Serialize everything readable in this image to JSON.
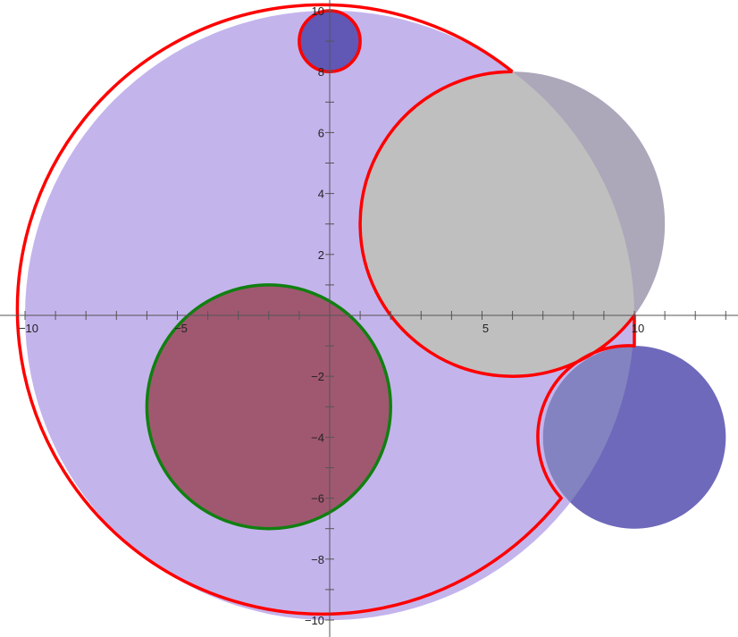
{
  "chart_data": {
    "type": "diagram",
    "xlim": [
      -10.5,
      13.5
    ],
    "ylim": [
      -10.5,
      10.5
    ],
    "grid": false,
    "x_ticks": [
      {
        "value": -10,
        "label": "−10"
      },
      {
        "value": -5,
        "label": "−5"
      },
      {
        "value": 5,
        "label": "5"
      },
      {
        "value": 10,
        "label": "10"
      }
    ],
    "y_ticks": [
      {
        "value": 10,
        "label": "10"
      },
      {
        "value": 8,
        "label": "8"
      },
      {
        "value": 6,
        "label": "6"
      },
      {
        "value": 4,
        "label": "4"
      },
      {
        "value": 2,
        "label": "2"
      },
      {
        "value": -2,
        "label": "−2"
      },
      {
        "value": -4,
        "label": "−4"
      },
      {
        "value": -6,
        "label": "−6"
      },
      {
        "value": -8,
        "label": "−8"
      },
      {
        "value": -10,
        "label": "−10"
      }
    ],
    "minor_tick_step": 1,
    "main_disk": {
      "center": [
        0,
        0
      ],
      "radius": 10
    },
    "cutouts": [
      {
        "center": [
          6,
          3
        ],
        "radius": 5
      },
      {
        "center": [
          10,
          -4
        ],
        "radius": 3
      }
    ],
    "circles": [
      {
        "center": [
          6,
          3
        ],
        "radius": 5,
        "fill": "#a0a0a0",
        "opacity": 0.68
      },
      {
        "center": [
          10,
          -4
        ],
        "radius": 3,
        "fill": "#4040a0",
        "opacity": 0.65
      },
      {
        "center": [
          0,
          9
        ],
        "radius": 1,
        "fill": "#6058b4",
        "stroke": "#ff0000"
      },
      {
        "center": [
          -2,
          -3
        ],
        "radius": 4,
        "fill": "#a05870",
        "stroke": "#108010"
      }
    ],
    "colors": {
      "region_fill": "#c4b4ec",
      "region_stroke": "#ff0000",
      "axis": "#555555"
    }
  }
}
